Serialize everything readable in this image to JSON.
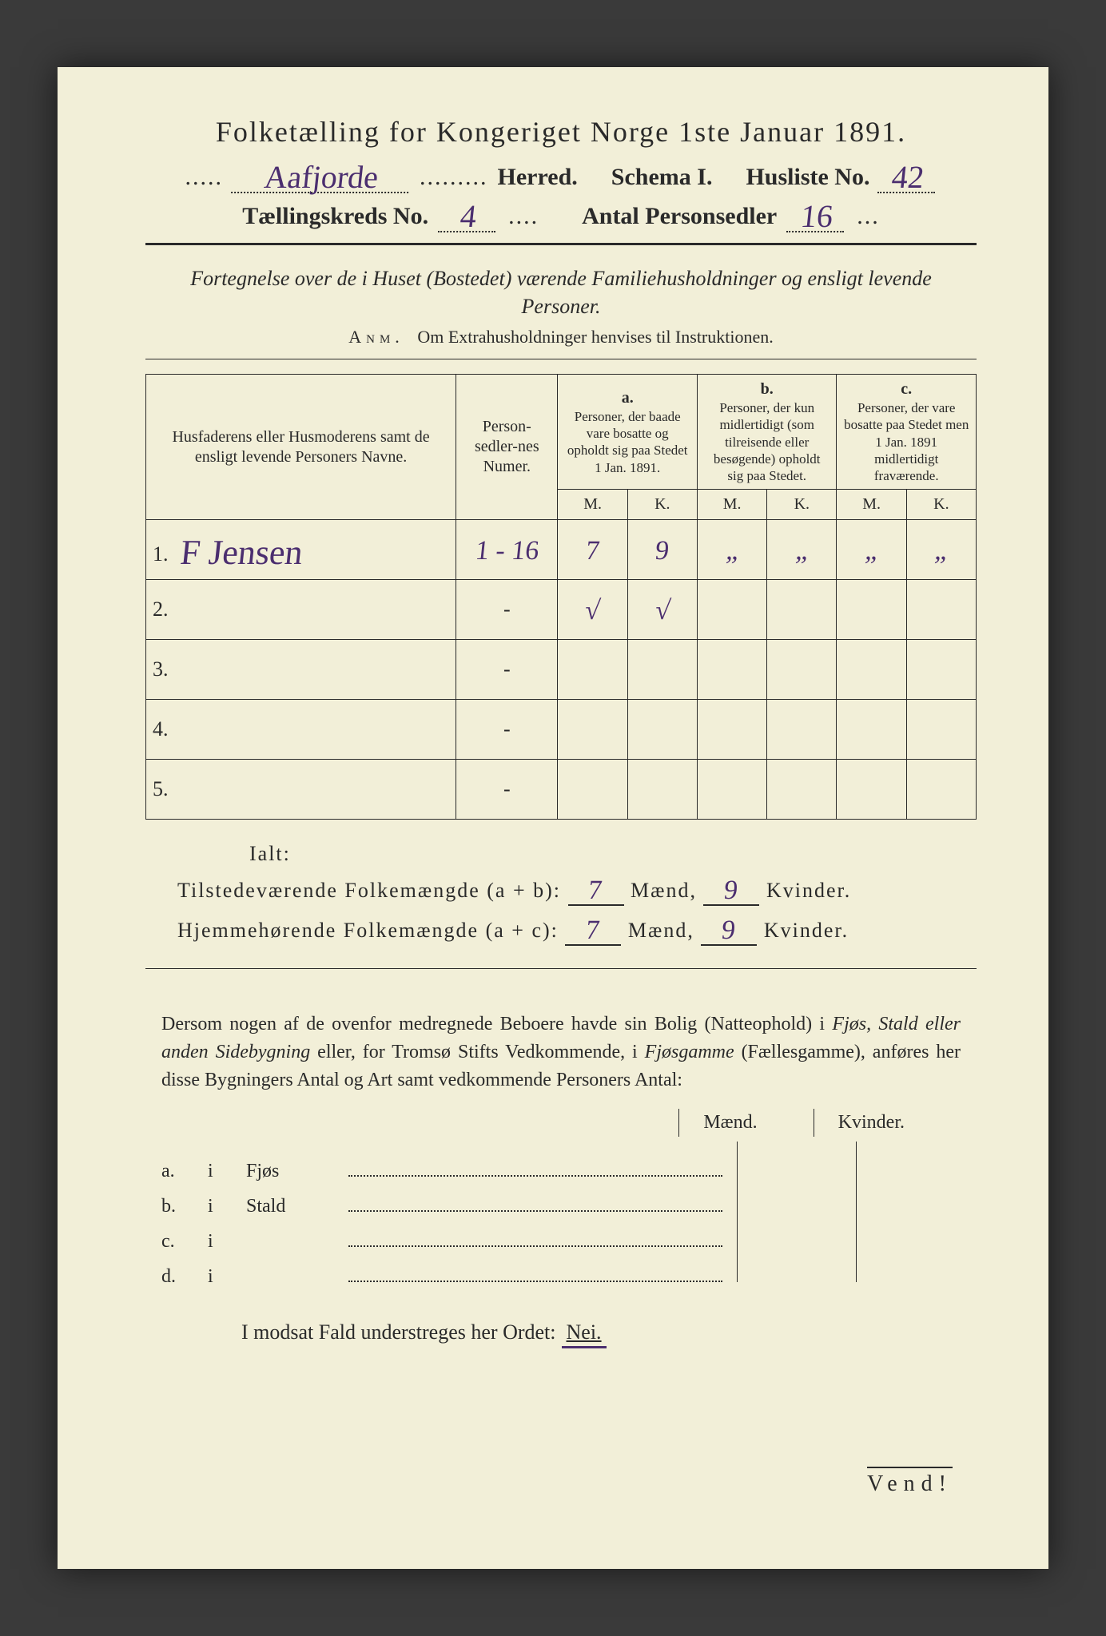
{
  "colors": {
    "paper": "#f2efd8",
    "ink": "#2a2a2a",
    "handwriting": "#4b2e6f",
    "background": "#3a3a3a"
  },
  "header": {
    "title": "Folketælling for Kongeriget Norge 1ste Januar 1891.",
    "herred_hw": "Aafjorde",
    "herred_label": "Herred.",
    "schema_label": "Schema I.",
    "husliste_label": "Husliste No.",
    "husliste_no_hw": "42",
    "kreds_label": "Tællingskreds No.",
    "kreds_no_hw": "4",
    "antal_label": "Antal Personsedler",
    "antal_hw": "16"
  },
  "subtitle": {
    "line": "Fortegnelse over de i Huset (Bostedet) værende Familiehusholdninger og ensligt levende Personer.",
    "anm_label": "Anm.",
    "anm_text": "Om Extrahusholdninger henvises til Instruktionen."
  },
  "table": {
    "head_name": "Husfaderens eller Husmoderens samt de ensligt levende Personers Navne.",
    "head_num": "Person-sedler-nes Numer.",
    "head_a_letter": "a.",
    "head_a": "Personer, der baade vare bosatte og opholdt sig paa Stedet 1 Jan. 1891.",
    "head_b_letter": "b.",
    "head_b": "Personer, der kun midlertidigt (som tilreisende eller besøgende) opholdt sig paa Stedet.",
    "head_c_letter": "c.",
    "head_c": "Personer, der vare bosatte paa Stedet men 1 Jan. 1891 midlertidigt fraværende.",
    "M": "M.",
    "K": "K.",
    "rows": [
      {
        "n": "1.",
        "name_hw": "F Jensen",
        "num_hw": "1 - 16",
        "aM": "7",
        "aK": "9",
        "bM": "„",
        "bK": "„",
        "cM": "„",
        "cK": "„"
      },
      {
        "n": "2.",
        "name_hw": "",
        "num_hw": "-",
        "aM": "√",
        "aK": "√",
        "bM": "",
        "bK": "",
        "cM": "",
        "cK": ""
      },
      {
        "n": "3.",
        "name_hw": "",
        "num_hw": "-",
        "aM": "",
        "aK": "",
        "bM": "",
        "bK": "",
        "cM": "",
        "cK": ""
      },
      {
        "n": "4.",
        "name_hw": "",
        "num_hw": "-",
        "aM": "",
        "aK": "",
        "bM": "",
        "bK": "",
        "cM": "",
        "cK": ""
      },
      {
        "n": "5.",
        "name_hw": "",
        "num_hw": "-",
        "aM": "",
        "aK": "",
        "bM": "",
        "bK": "",
        "cM": "",
        "cK": ""
      }
    ]
  },
  "sums": {
    "ialt": "Ialt:",
    "line1_label": "Tilstedeværende Folkemængde (a + b):",
    "line2_label": "Hjemmehørende Folkemængde (a + c):",
    "maend": "Mænd,",
    "kvinder": "Kvinder.",
    "l1_m": "7",
    "l1_k": "9",
    "l2_m": "7",
    "l2_k": "9"
  },
  "para": {
    "text1": "Dersom nogen af de ovenfor medregnede Beboere havde sin Bolig (Natteophold) i ",
    "it1": "Fjøs, Stald eller anden Sidebygning",
    "text2": " eller, for Tromsø Stifts Vedkommende, i ",
    "it2": "Fjøsgamme",
    "text3": " (Fællesgamme), anføres her disse Bygningers Antal og Art samt vedkommende Personers Antal:"
  },
  "bldg": {
    "maend": "Mænd.",
    "kvinder": "Kvinder.",
    "rows": [
      {
        "lab": "a.",
        "i": "i",
        "type": "Fjøs"
      },
      {
        "lab": "b.",
        "i": "i",
        "type": "Stald"
      },
      {
        "lab": "c.",
        "i": "i",
        "type": ""
      },
      {
        "lab": "d.",
        "i": "i",
        "type": ""
      }
    ]
  },
  "modsat": {
    "text": "I modsat Fald understreges her Ordet:",
    "nei": "Nei."
  },
  "vend": "Vend!"
}
